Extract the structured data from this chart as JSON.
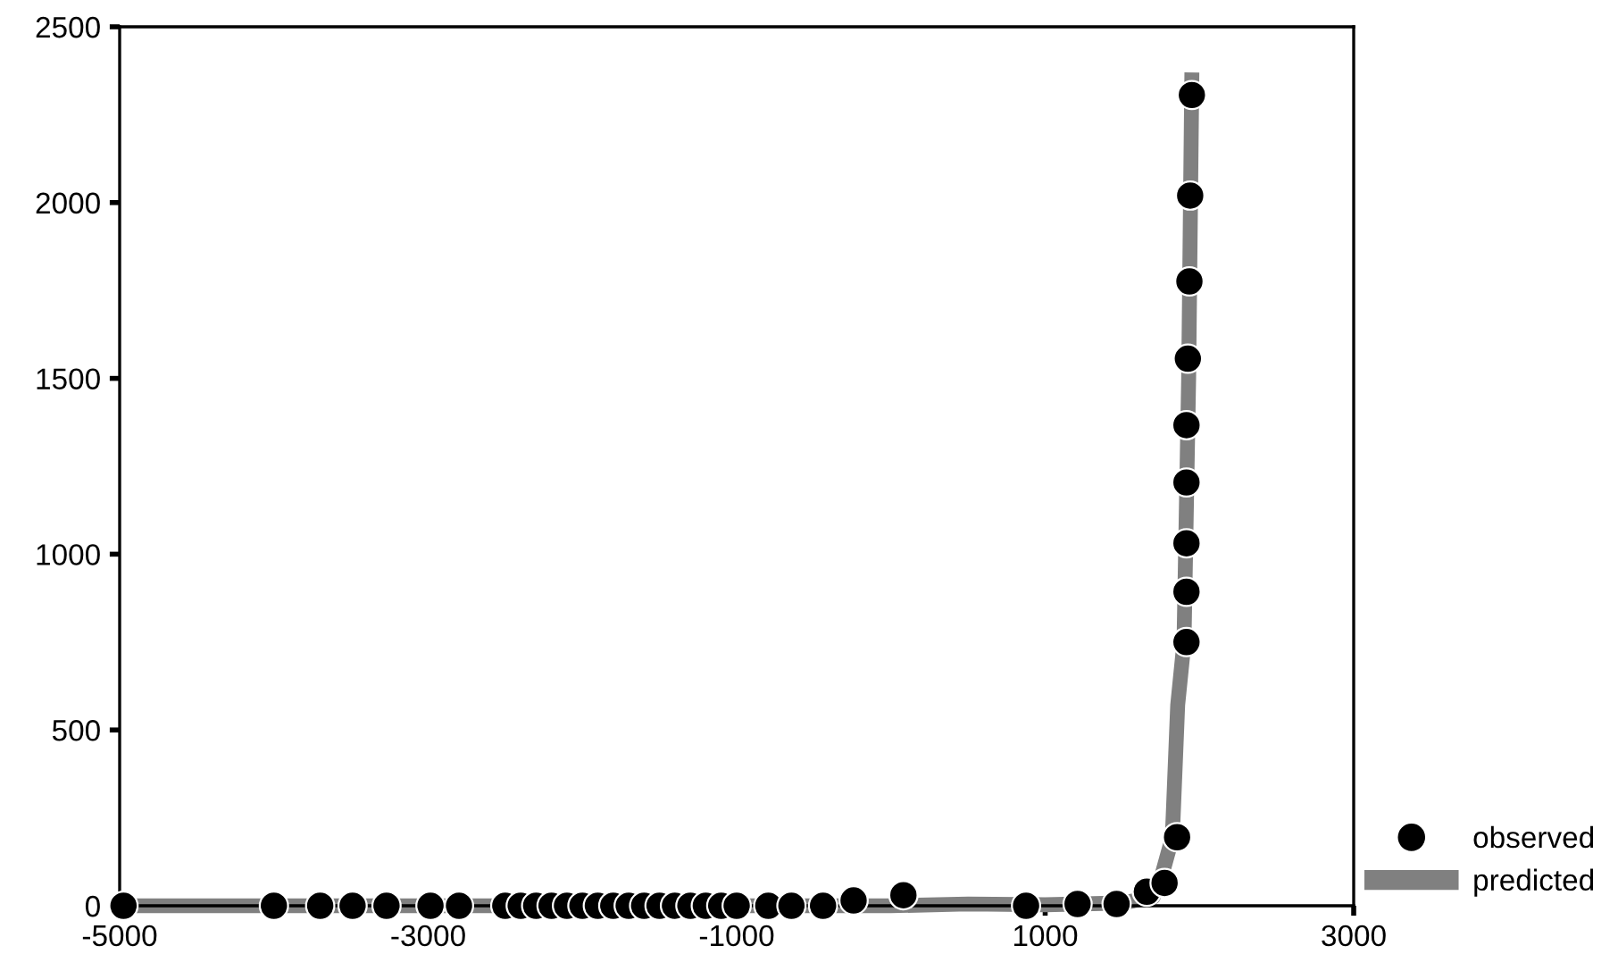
{
  "chart_data": {
    "type": "scatter",
    "series": [
      {
        "name": "observed",
        "color": "#000000",
        "marker": "circle",
        "x": [
          -4975,
          -4000,
          -3700,
          -3490,
          -3270,
          -2985,
          -2800,
          -2500,
          -2400,
          -2300,
          -2200,
          -2100,
          -2000,
          -1900,
          -1800,
          -1700,
          -1600,
          -1500,
          -1400,
          -1300,
          -1200,
          -1100,
          -1000,
          -795,
          -645,
          -440,
          -242,
          81,
          876,
          1210,
          1463,
          1659,
          1774,
          1855,
          1916,
          1916,
          1916,
          1916,
          1916,
          1925,
          1935,
          1940,
          1951
        ],
        "values": [
          0,
          0,
          0,
          0,
          0,
          0,
          0,
          0,
          0,
          0,
          0,
          0,
          0,
          0,
          0,
          0,
          0,
          0,
          0,
          0,
          0,
          0,
          0,
          0,
          0,
          0,
          15,
          30,
          0,
          5,
          5,
          40,
          65,
          195,
          750,
          893,
          1031,
          1204,
          1367,
          1556,
          1776,
          2020,
          2306
        ]
      },
      {
        "name": "predicted",
        "type": "line",
        "color": "#808080",
        "marker": "none",
        "x": [
          -5000,
          0,
          500,
          1000,
          1500,
          1700,
          1750,
          1824,
          1859,
          1900,
          1930,
          1951
        ],
        "values": [
          0,
          0,
          5,
          3,
          8,
          25,
          77,
          194,
          571,
          750,
          1500,
          2370
        ]
      }
    ],
    "xlim": [
      -5000,
      3000
    ],
    "xticks": [
      -5000,
      -3000,
      -1000,
      1000,
      3000
    ],
    "ylim": [
      0,
      2500
    ],
    "yticks": [
      0,
      500,
      1000,
      1500,
      2000,
      2500
    ],
    "grid": false,
    "legend": "bottom right"
  }
}
